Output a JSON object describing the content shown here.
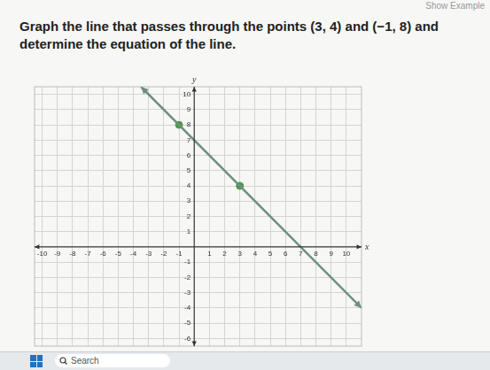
{
  "question": "Graph the line that passes through the points (3, 4) and (−1, 8) and determine the equation of the line.",
  "button": "Show Example",
  "taskbar": {
    "search": "Search"
  },
  "chart_data": {
    "type": "line",
    "x_label": "x",
    "y_label": "y",
    "xlim": [
      -10.5,
      11
    ],
    "ylim": [
      -6.5,
      10.5
    ],
    "xticks": [
      -10,
      -9,
      -8,
      -7,
      -6,
      -5,
      -4,
      -3,
      -2,
      -1,
      1,
      2,
      3,
      4,
      5,
      6,
      7,
      8,
      9,
      10
    ],
    "yticks": [
      -6,
      -5,
      -4,
      -3,
      -2,
      -1,
      1,
      2,
      3,
      4,
      5,
      6,
      7,
      8,
      9,
      10
    ],
    "origin": [
      0,
      0
    ],
    "grid": true,
    "series": [
      {
        "type": "line",
        "color": "#6e8f80",
        "marker": "arrow",
        "line_style": "solid",
        "x": [
          -3.5,
          11
        ],
        "y": [
          10.5,
          -4
        ]
      },
      {
        "type": "scatter",
        "color": "#4f9a45",
        "marker": "circle",
        "x": [
          3,
          -1
        ],
        "y": [
          4,
          8
        ]
      }
    ]
  }
}
